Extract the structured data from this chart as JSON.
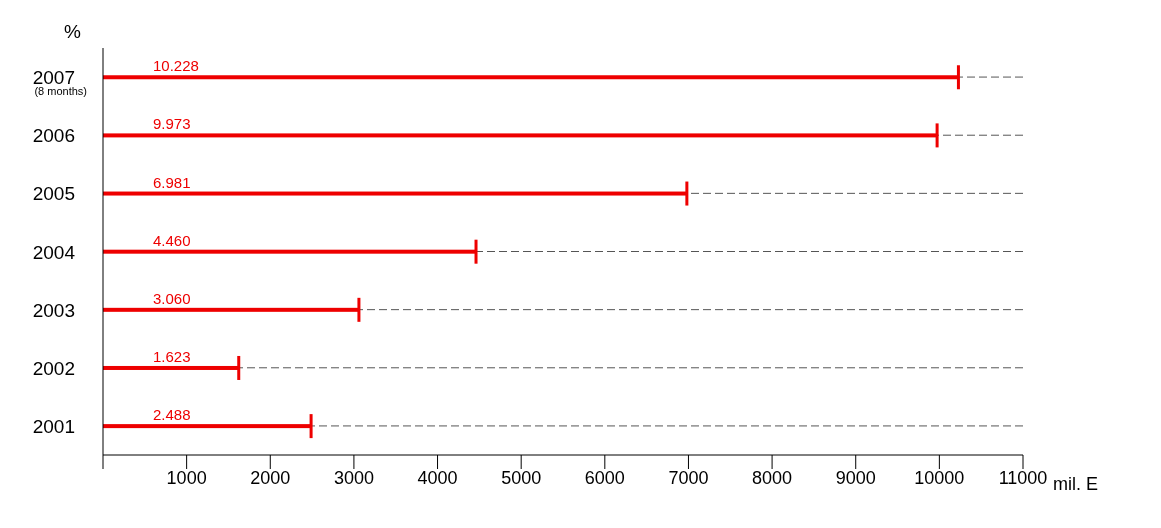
{
  "chart_data": {
    "type": "bar",
    "orientation": "horizontal",
    "categories": [
      "2007$_{(8 months)}$",
      "2006",
      "2005",
      "2004",
      "2003",
      "2002",
      "2001"
    ],
    "values": [
      10228,
      9973,
      6981,
      4460,
      3060,
      1623,
      2488
    ],
    "value_labels": [
      "10.228",
      "9.973",
      "6.981",
      "4.460",
      "3.060",
      "1.623",
      "2.488"
    ],
    "color": "#ee0000",
    "xlim": [
      0,
      11000
    ],
    "xticks": [
      {
        "value": 0,
        "label": null
      },
      1000,
      2000,
      3000,
      4000,
      5000,
      6000,
      7000,
      8000,
      9000,
      10000,
      11000
    ],
    "xlabel": "mil. E",
    "ylabel": "%",
    "grid": "y",
    "line_style": "dashed"
  }
}
